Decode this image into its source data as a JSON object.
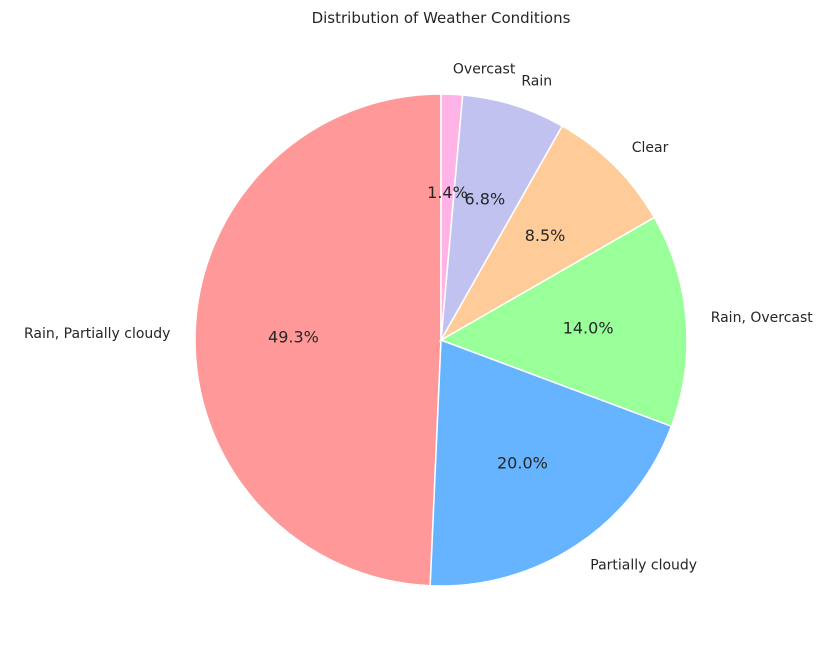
{
  "chart_data": {
    "type": "pie",
    "title": "Distribution of Weather Conditions",
    "start_angle_deg": 90,
    "direction": "counterclockwise",
    "slices": [
      {
        "label": "Rain, Partially cloudy",
        "value": 49.3,
        "pct_label": "49.3%",
        "color": "#ff9999"
      },
      {
        "label": "Partially cloudy",
        "value": 20.0,
        "pct_label": "20.0%",
        "color": "#66b3ff"
      },
      {
        "label": "Rain, Overcast",
        "value": 14.0,
        "pct_label": "14.0%",
        "color": "#99ff99"
      },
      {
        "label": "Clear",
        "value": 8.5,
        "pct_label": "8.5%",
        "color": "#ffcc99"
      },
      {
        "label": "Rain",
        "value": 6.8,
        "pct_label": "6.8%",
        "color": "#c2c2f0"
      },
      {
        "label": "Overcast",
        "value": 1.4,
        "pct_label": "1.4%",
        "color": "#ffb3e6"
      }
    ],
    "legend": "none"
  }
}
